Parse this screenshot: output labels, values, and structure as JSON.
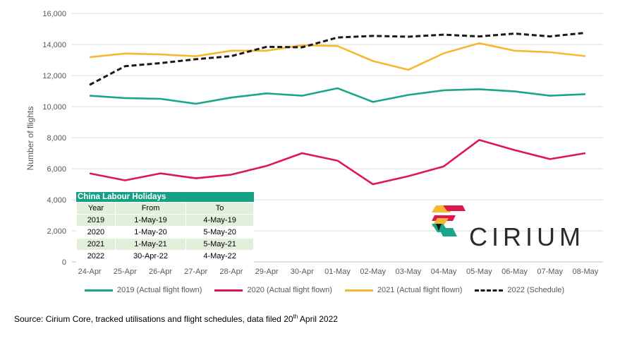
{
  "chart_data": {
    "type": "line",
    "title": "",
    "xlabel": "",
    "ylabel": "Number of flights",
    "ylim": [
      0,
      16000
    ],
    "yticks": [
      0,
      2000,
      4000,
      6000,
      8000,
      10000,
      12000,
      14000,
      16000
    ],
    "ytick_labels": [
      "0",
      "2,000",
      "4,000",
      "6,000",
      "8,000",
      "10,000",
      "12,000",
      "14,000",
      "16,000"
    ],
    "grid": "horizontal",
    "legend_position": "bottom",
    "categories": [
      "24-Apr",
      "25-Apr",
      "26-Apr",
      "27-Apr",
      "28-Apr",
      "29-Apr",
      "30-Apr",
      "01-May",
      "02-May",
      "03-May",
      "04-May",
      "05-May",
      "06-May",
      "07-May",
      "08-May"
    ],
    "series": [
      {
        "name": "2019 (Actual flight flown)",
        "color": "#1aa68a",
        "style": "solid",
        "values": [
          10700,
          10550,
          10500,
          10180,
          10580,
          10850,
          10700,
          11180,
          10300,
          10750,
          11050,
          11120,
          10980,
          10700,
          10800
        ]
      },
      {
        "name": "2020 (Actual flight flown)",
        "color": "#e0174f",
        "style": "solid",
        "values": [
          5700,
          5250,
          5700,
          5380,
          5620,
          6180,
          7000,
          6520,
          5000,
          5520,
          6150,
          7850,
          7200,
          6620,
          7000
        ]
      },
      {
        "name": "2021 (Actual flight flown)",
        "color": "#f5b92f",
        "style": "solid",
        "values": [
          13180,
          13420,
          13360,
          13240,
          13600,
          13600,
          13950,
          13900,
          12930,
          12370,
          13430,
          14080,
          13600,
          13500,
          13250
        ]
      },
      {
        "name": "2022 (Schedule)",
        "color": "#1a1a1a",
        "style": "dashed",
        "values": [
          11400,
          12600,
          12800,
          13050,
          13250,
          13850,
          13820,
          14450,
          14550,
          14500,
          14630,
          14520,
          14700,
          14520,
          14750
        ]
      }
    ]
  },
  "holiday_table": {
    "title": "China Labour Holidays",
    "headers": [
      "Year",
      "From",
      "To"
    ],
    "rows": [
      [
        "2019",
        "1-May-19",
        "4-May-19"
      ],
      [
        "2020",
        "1-May-20",
        "5-May-20"
      ],
      [
        "2021",
        "1-May-21",
        "5-May-21"
      ],
      [
        "2022",
        "30-Apr-22",
        "4-May-22"
      ]
    ]
  },
  "logo": {
    "text": "CIRIUM",
    "colors": [
      "#f5b92f",
      "#e0174f",
      "#1aa68a",
      "#1a1a1a"
    ]
  },
  "source": {
    "text": "Source: Cirium Core, tracked utilisations and flight schedules, data filed 20",
    "superscript": "th",
    "suffix": " April 2022"
  }
}
